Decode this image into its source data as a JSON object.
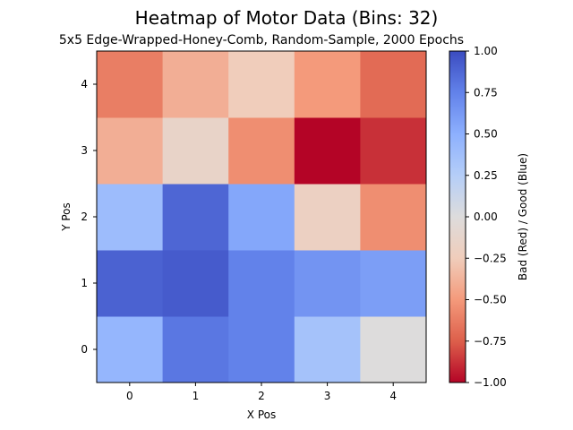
{
  "chart_data": {
    "type": "heatmap",
    "title": "Heatmap of Motor Data (Bins: 32)",
    "subtitle": "5x5 Edge-Wrapped-Honey-Comb, Random-Sample, 2000 Epochs",
    "xlabel": "X Pos",
    "ylabel": "Y Pos",
    "x_categories": [
      "0",
      "1",
      "2",
      "3",
      "4"
    ],
    "y_categories": [
      "0",
      "1",
      "2",
      "3",
      "4"
    ],
    "values_by_y": [
      [
        0.45,
        0.8,
        0.75,
        0.35,
        0.0
      ],
      [
        0.9,
        0.93,
        0.75,
        0.65,
        0.6
      ],
      [
        0.4,
        0.88,
        0.55,
        -0.2,
        -0.55
      ],
      [
        -0.4,
        -0.15,
        -0.55,
        -1.0,
        -0.88
      ],
      [
        -0.62,
        -0.4,
        -0.25,
        -0.5,
        -0.7
      ]
    ],
    "colorbar": {
      "label": "Bad (Red)    /    Good (Blue)",
      "range": [
        -1.0,
        1.0
      ],
      "ticks": [
        "1.00",
        "0.75",
        "0.50",
        "0.25",
        "0.00",
        "−0.25",
        "−0.50",
        "−0.75",
        "−1.00"
      ],
      "colormap": "coolwarm_r"
    }
  }
}
